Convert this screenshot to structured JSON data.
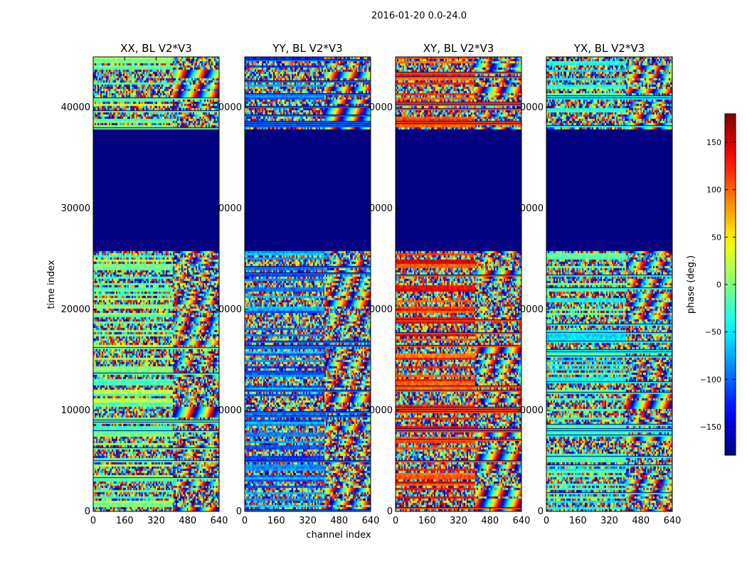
{
  "chart_data": {
    "type": "heatmap",
    "suptitle": "2016-01-20 0.0-24.0",
    "xlabel": "channel index",
    "ylabel": "time index",
    "colorbar_label": "phase (deg.)",
    "colormap": "jet",
    "panels": [
      {
        "title": "XX, BL V2*V3",
        "hue_shift": 0,
        "ytick_labels": [
          "0",
          "10000",
          "20000",
          "30000",
          "40000"
        ]
      },
      {
        "title": "YY, BL V2*V3",
        "hue_shift": -90,
        "ytick_labels": [
          "0",
          "0000",
          "0000",
          "0000",
          "0000"
        ]
      },
      {
        "title": "XY, BL V2*V3",
        "hue_shift": 120,
        "ytick_labels": [
          "0",
          "0000",
          "0000",
          "0000",
          "0000"
        ]
      },
      {
        "title": "YX, BL V2*V3",
        "hue_shift": -30,
        "ytick_labels": [
          "0",
          "0000",
          "0000",
          "0000",
          "0000"
        ]
      }
    ],
    "xticks": [
      0,
      160,
      320,
      480,
      640
    ],
    "xlim": [
      0,
      640
    ],
    "yticks": [
      0,
      10000,
      20000,
      30000,
      40000
    ],
    "ylim": [
      0,
      45000
    ],
    "flagged_time_range": [
      25800,
      38000
    ],
    "flagged_value": -180,
    "colorbar_range": [
      -180,
      180
    ],
    "colorbar_ticks": [
      -150,
      -100,
      -50,
      0,
      50,
      100,
      150
    ],
    "colorbar_tick_labels": [
      "−150",
      "−100",
      "−50",
      "0",
      "50",
      "100",
      "150"
    ]
  }
}
